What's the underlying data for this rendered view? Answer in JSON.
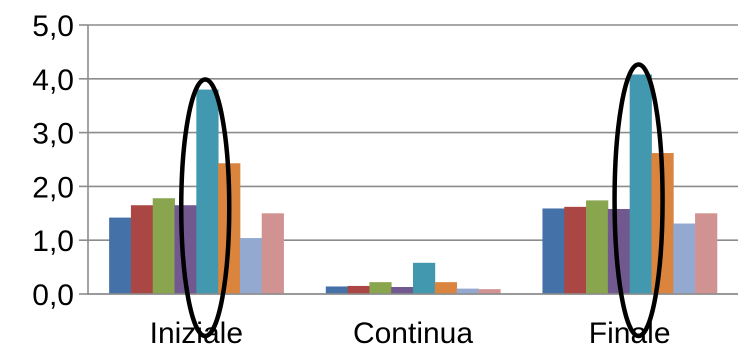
{
  "chart_data": {
    "type": "bar",
    "title": "",
    "xlabel": "",
    "ylabel": "",
    "ylim": [
      0,
      5
    ],
    "y_ticks": [
      "0,0",
      "1,0",
      "2,0",
      "3,0",
      "4,0",
      "5,0"
    ],
    "grid": true,
    "legend": "none",
    "categories": [
      "Iniziale",
      "Continua",
      "Finale"
    ],
    "series": [
      {
        "color": "#4472a8",
        "values": [
          1.42,
          0.14,
          1.59
        ]
      },
      {
        "color": "#aa4643",
        "values": [
          1.65,
          0.15,
          1.62
        ]
      },
      {
        "color": "#89a54e",
        "values": [
          1.78,
          0.22,
          1.74
        ]
      },
      {
        "color": "#71588f",
        "values": [
          1.65,
          0.13,
          1.58
        ]
      },
      {
        "color": "#4198af",
        "values": [
          3.8,
          0.58,
          4.08
        ]
      },
      {
        "color": "#db843d",
        "values": [
          2.43,
          0.22,
          2.62
        ]
      },
      {
        "color": "#93a9cf",
        "values": [
          1.04,
          0.1,
          1.31
        ]
      },
      {
        "color": "#d19392",
        "values": [
          1.5,
          0.09,
          1.5
        ]
      }
    ],
    "annotations": [
      {
        "type": "ellipse-highlight",
        "category": "Iniziale",
        "series_index": 4
      },
      {
        "type": "ellipse-highlight",
        "category": "Finale",
        "series_index": 4
      }
    ]
  }
}
